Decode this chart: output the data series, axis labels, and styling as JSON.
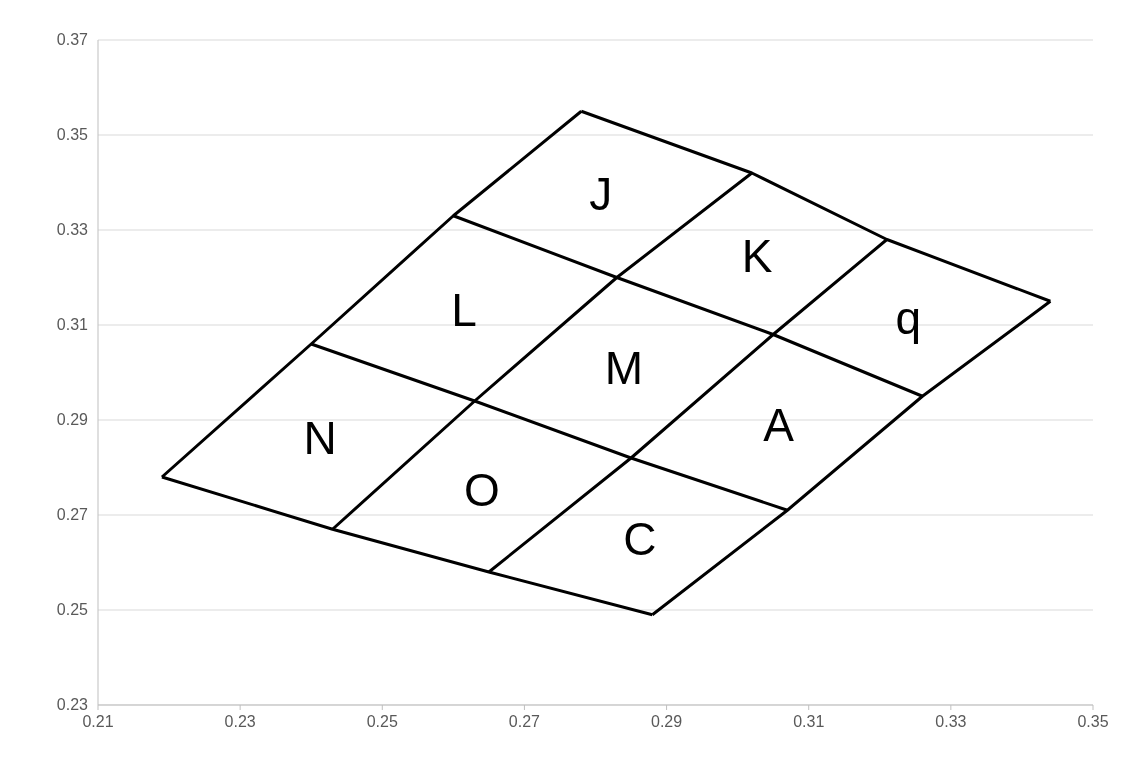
{
  "chart_data": {
    "type": "line",
    "xlim": [
      0.21,
      0.35
    ],
    "ylim": [
      0.23,
      0.37
    ],
    "xticks": [
      0.21,
      0.23,
      0.25,
      0.27,
      0.29,
      0.31,
      0.33,
      0.35
    ],
    "yticks": [
      0.23,
      0.25,
      0.27,
      0.29,
      0.31,
      0.33,
      0.35,
      0.37
    ],
    "grid": "y",
    "line_style": "solid",
    "series": [
      {
        "color": "#000000",
        "x": [
          0.219,
          0.243,
          0.265,
          0.288
        ],
        "values": [
          0.278,
          0.267,
          0.258,
          0.249
        ]
      },
      {
        "color": "#000000",
        "x": [
          0.24,
          0.263,
          0.285,
          0.307
        ],
        "values": [
          0.306,
          0.294,
          0.282,
          0.271
        ]
      },
      {
        "color": "#000000",
        "x": [
          0.26,
          0.283,
          0.305,
          0.326
        ],
        "values": [
          0.333,
          0.32,
          0.308,
          0.295
        ]
      },
      {
        "color": "#000000",
        "x": [
          0.278,
          0.302,
          0.321,
          0.344
        ],
        "values": [
          0.355,
          0.342,
          0.328,
          0.315
        ]
      },
      {
        "color": "#000000",
        "x": [
          0.219,
          0.24,
          0.26,
          0.278
        ],
        "values": [
          0.278,
          0.306,
          0.333,
          0.355
        ]
      },
      {
        "color": "#000000",
        "x": [
          0.243,
          0.263,
          0.283,
          0.302
        ],
        "values": [
          0.267,
          0.294,
          0.32,
          0.342
        ]
      },
      {
        "color": "#000000",
        "x": [
          0.265,
          0.285,
          0.305,
          0.321
        ],
        "values": [
          0.258,
          0.282,
          0.308,
          0.328
        ]
      },
      {
        "color": "#000000",
        "x": [
          0.288,
          0.307,
          0.326,
          0.344
        ],
        "values": [
          0.249,
          0.271,
          0.295,
          0.315
        ]
      }
    ],
    "annotations": [
      "J",
      "K",
      "q",
      "L",
      "M",
      "A",
      "N",
      "O",
      "C"
    ]
  }
}
